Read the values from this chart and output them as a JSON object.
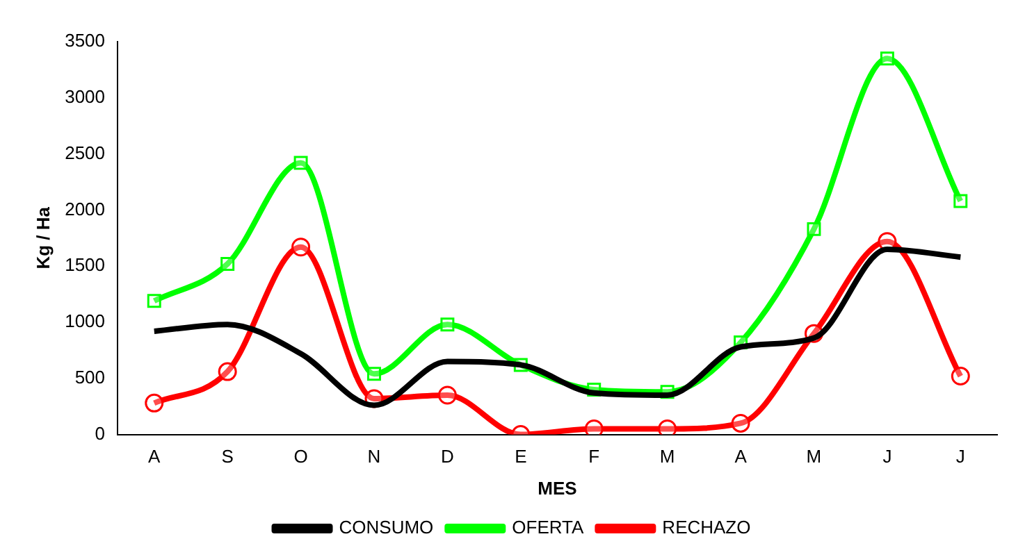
{
  "chart_data": {
    "type": "line",
    "xlabel": "MES",
    "ylabel": "Kg / Ha",
    "categories": [
      "A",
      "S",
      "O",
      "N",
      "D",
      "E",
      "F",
      "M",
      "A",
      "M",
      "J",
      "J"
    ],
    "ylim": [
      0,
      3500
    ],
    "yticks": [
      0,
      500,
      1000,
      1500,
      2000,
      2500,
      3000,
      3500
    ],
    "grid": false,
    "legend": "bottom",
    "line_style": "solid",
    "series": [
      {
        "name": "CONSUMO",
        "color": "#000000",
        "marker": "none",
        "values": [
          920,
          980,
          720,
          260,
          650,
          620,
          370,
          350,
          780,
          860,
          1650,
          1580
        ]
      },
      {
        "name": "OFERTA",
        "color": "#00ff00",
        "marker": "square",
        "values": [
          1190,
          1520,
          2420,
          540,
          980,
          620,
          400,
          380,
          820,
          1830,
          3350,
          2080
        ]
      },
      {
        "name": "RECHAZO",
        "color": "#ff0000",
        "marker": "circle",
        "values": [
          280,
          560,
          1670,
          320,
          350,
          0,
          50,
          50,
          100,
          900,
          1720,
          520
        ]
      }
    ]
  }
}
